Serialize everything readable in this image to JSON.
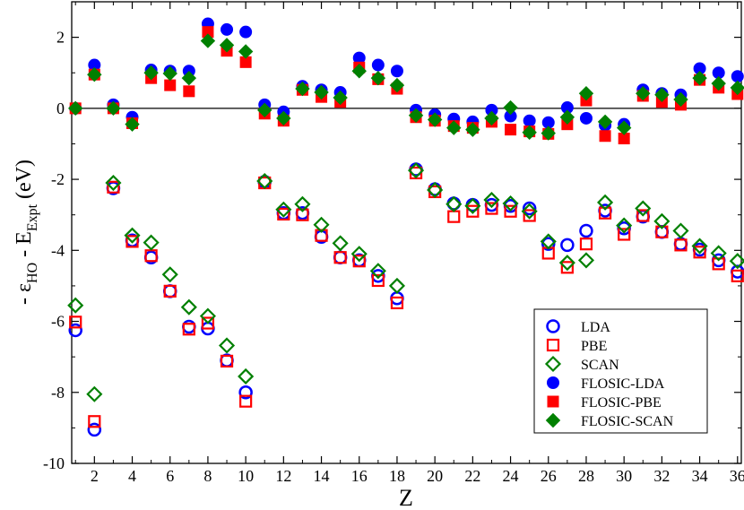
{
  "chart_data": {
    "type": "scatter",
    "xlabel": "Z",
    "ylabel_parts": {
      "minus": "- ε",
      "sub1": "HO",
      "middle": " - E",
      "sub2": "Expt",
      "unit": " (eV)"
    },
    "xlim": [
      0.8,
      36.2
    ],
    "ylim": [
      -10,
      3
    ],
    "xticks": [
      2,
      4,
      6,
      8,
      10,
      12,
      14,
      16,
      18,
      20,
      22,
      24,
      26,
      28,
      30,
      32,
      34,
      36
    ],
    "yticks": [
      -10,
      -8,
      -6,
      -4,
      -2,
      0,
      2
    ],
    "zero_line": true,
    "legend_position": "lower-right",
    "colors": {
      "LDA": "#0000ff",
      "PBE": "#ff0000",
      "SCAN": "#008000"
    },
    "series": [
      {
        "name": "LDA",
        "marker": "circle-open",
        "color": "#0000ff",
        "x": [
          1,
          2,
          3,
          4,
          5,
          6,
          7,
          8,
          9,
          10,
          11,
          12,
          13,
          14,
          15,
          16,
          17,
          18,
          19,
          20,
          21,
          22,
          23,
          24,
          25,
          26,
          27,
          28,
          29,
          30,
          31,
          32,
          33,
          34,
          35,
          36
        ],
        "y": [
          -6.25,
          -9.05,
          -2.25,
          -3.72,
          -4.2,
          -5.15,
          -6.15,
          -6.2,
          -7.1,
          -8.0,
          -2.07,
          -2.95,
          -2.95,
          -3.62,
          -4.2,
          -4.28,
          -4.72,
          -5.35,
          -1.72,
          -2.28,
          -2.68,
          -2.72,
          -2.72,
          -2.75,
          -2.82,
          -3.82,
          -3.85,
          -3.45,
          -2.88,
          -3.38,
          -3.05,
          -3.48,
          -3.82,
          -3.98,
          -4.28,
          -4.6
        ]
      },
      {
        "name": "PBE",
        "marker": "square-open",
        "color": "#ff0000",
        "x": [
          1,
          2,
          3,
          4,
          5,
          6,
          7,
          8,
          9,
          10,
          11,
          12,
          13,
          14,
          15,
          16,
          17,
          18,
          19,
          20,
          21,
          22,
          23,
          24,
          25,
          26,
          27,
          28,
          29,
          30,
          31,
          32,
          33,
          34,
          35,
          36
        ],
        "y": [
          -6.02,
          -8.82,
          -2.22,
          -3.75,
          -4.15,
          -5.15,
          -6.22,
          -6.05,
          -7.12,
          -8.25,
          -2.1,
          -2.98,
          -3.0,
          -3.58,
          -4.2,
          -4.3,
          -4.85,
          -5.48,
          -1.82,
          -2.35,
          -3.05,
          -2.9,
          -2.82,
          -2.9,
          -3.02,
          -4.08,
          -4.48,
          -3.82,
          -2.95,
          -3.55,
          -3.02,
          -3.48,
          -3.85,
          -4.05,
          -4.38,
          -4.72
        ]
      },
      {
        "name": "SCAN",
        "marker": "diamond-open",
        "color": "#008000",
        "x": [
          1,
          2,
          3,
          4,
          5,
          6,
          7,
          8,
          9,
          10,
          11,
          12,
          13,
          14,
          15,
          16,
          17,
          18,
          19,
          20,
          21,
          22,
          23,
          24,
          25,
          26,
          27,
          28,
          29,
          30,
          31,
          32,
          33,
          34,
          35,
          36
        ],
        "y": [
          -5.55,
          -8.05,
          -2.1,
          -3.58,
          -3.78,
          -4.68,
          -5.6,
          -5.85,
          -6.68,
          -7.55,
          -2.05,
          -2.85,
          -2.7,
          -3.28,
          -3.8,
          -4.1,
          -4.58,
          -5.0,
          -1.75,
          -2.3,
          -2.7,
          -2.75,
          -2.58,
          -2.68,
          -2.9,
          -3.75,
          -4.35,
          -4.28,
          -2.65,
          -3.3,
          -2.82,
          -3.18,
          -3.45,
          -3.88,
          -4.08,
          -4.3
        ]
      },
      {
        "name": "FLOSIC-LDA",
        "marker": "circle-filled",
        "color": "#0000ff",
        "x": [
          1,
          2,
          3,
          4,
          5,
          6,
          7,
          8,
          9,
          10,
          11,
          12,
          13,
          14,
          15,
          16,
          17,
          18,
          19,
          20,
          21,
          22,
          23,
          24,
          25,
          26,
          27,
          28,
          29,
          30,
          31,
          32,
          33,
          34,
          35,
          36
        ],
        "y": [
          0.0,
          1.22,
          0.1,
          -0.25,
          1.08,
          1.05,
          1.05,
          2.38,
          2.22,
          2.15,
          0.1,
          -0.1,
          0.62,
          0.52,
          0.45,
          1.42,
          1.22,
          1.05,
          -0.05,
          -0.18,
          -0.3,
          -0.38,
          -0.05,
          -0.22,
          -0.35,
          -0.4,
          0.02,
          -0.28,
          -0.48,
          -0.45,
          0.52,
          0.42,
          0.38,
          1.12,
          1.0,
          0.9
        ]
      },
      {
        "name": "FLOSIC-PBE",
        "marker": "square-filled",
        "color": "#ff0000",
        "x": [
          1,
          2,
          3,
          4,
          5,
          6,
          7,
          8,
          9,
          10,
          11,
          12,
          13,
          14,
          15,
          16,
          17,
          18,
          19,
          20,
          21,
          22,
          23,
          24,
          25,
          26,
          27,
          28,
          29,
          30,
          31,
          32,
          33,
          34,
          35,
          36
        ],
        "y": [
          0.0,
          0.95,
          0.0,
          -0.42,
          0.85,
          0.65,
          0.48,
          2.15,
          1.62,
          1.3,
          -0.15,
          -0.35,
          0.52,
          0.32,
          0.18,
          1.15,
          0.82,
          0.55,
          -0.25,
          -0.35,
          -0.5,
          -0.55,
          -0.38,
          -0.6,
          -0.65,
          -0.72,
          -0.45,
          0.22,
          -0.78,
          -0.85,
          0.35,
          0.18,
          0.1,
          0.8,
          0.58,
          0.4
        ]
      },
      {
        "name": "FLOSIC-SCAN",
        "marker": "diamond-filled",
        "color": "#008000",
        "x": [
          1,
          2,
          3,
          4,
          5,
          6,
          7,
          8,
          9,
          10,
          11,
          12,
          13,
          14,
          15,
          16,
          17,
          18,
          19,
          20,
          21,
          22,
          23,
          24,
          25,
          26,
          27,
          28,
          29,
          30,
          31,
          32,
          33,
          34,
          35,
          36
        ],
        "y": [
          0.0,
          0.95,
          0.0,
          -0.45,
          1.0,
          0.98,
          0.85,
          1.9,
          1.78,
          1.6,
          -0.05,
          -0.28,
          0.55,
          0.45,
          0.3,
          1.05,
          0.85,
          0.65,
          -0.2,
          -0.32,
          -0.55,
          -0.6,
          -0.28,
          0.02,
          -0.68,
          -0.7,
          -0.25,
          0.42,
          -0.38,
          -0.55,
          0.42,
          0.38,
          0.25,
          0.85,
          0.7,
          0.58
        ]
      }
    ]
  }
}
